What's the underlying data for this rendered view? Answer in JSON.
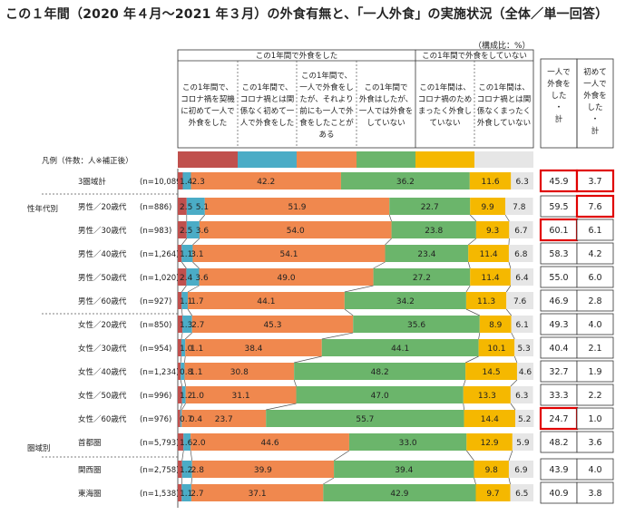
{
  "title": "この１年間（2020 年４月～2021 年３月）の外食有無と、「一人外食」の実施状況（全体／単一回答）",
  "unit_note": "（構成比：%）",
  "header": {
    "group_ate_out": "この1年間で外食をした",
    "group_not_ate_out": "この1年間で外食をしていない",
    "categories": [
      [
        "この1年間で、",
        "コロナ禍を契機",
        "に初めて一人で",
        "外食をした"
      ],
      [
        "この1年間で、",
        "コロナ禍とは関",
        "係なく初めて一",
        "人で外食をした"
      ],
      [
        "この1年間で、",
        "一人で外食をし",
        "たが、それより",
        "前にも一人で外",
        "食をしたことが",
        "ある"
      ],
      [
        "この1年間で",
        "外食はしたが、",
        "一人では外食を",
        "していない"
      ],
      [
        "この1年間は、",
        "コロナ禍のため",
        "まったく外食し",
        "ていない"
      ],
      [
        "この1年間は、",
        "コロナ禍とは関",
        "係なくまったく",
        "外食していない"
      ]
    ],
    "sum1": [
      "一人で",
      "外食を",
      "した",
      "・",
      "計"
    ],
    "sum2": [
      "初めて",
      "一人で",
      "外食を",
      "した",
      "・",
      "計"
    ]
  },
  "legend_label": "凡例（件数：人※補正後）",
  "colors": [
    "#c0504d",
    "#4bacc6",
    "#f0884e",
    "#6bb56b",
    "#f5b800",
    "#e6e6e6"
  ],
  "highlight_color": "#e00000",
  "group_labels": {
    "sex_age": "性年代別",
    "region": "圏域別"
  },
  "chart_data": {
    "type": "bar",
    "orientation": "horizontal-stacked-100",
    "xlim": [
      0,
      100
    ],
    "rows": [
      {
        "name": "3圏域計",
        "n": "(n=10,089)",
        "values": [
          1.4,
          2.3,
          42.2,
          36.2,
          11.6,
          6.3
        ],
        "sum1": "45.9",
        "sum2": "3.7",
        "box1": true,
        "box2": true
      },
      {
        "name": "男性／20歳代",
        "n": "(n=886)",
        "values": [
          2.5,
          5.1,
          51.9,
          22.7,
          9.9,
          7.8
        ],
        "sum1": "59.5",
        "sum2": "7.6",
        "box1": false,
        "box2": true
      },
      {
        "name": "男性／30歳代",
        "n": "(n=983)",
        "values": [
          2.5,
          3.6,
          54.0,
          23.8,
          9.3,
          6.7
        ],
        "sum1": "60.1",
        "sum2": "6.1",
        "box1": true,
        "box2": false
      },
      {
        "name": "男性／40歳代",
        "n": "(n=1,264)",
        "values": [
          1.1,
          3.1,
          54.1,
          23.4,
          11.4,
          6.8
        ],
        "sum1": "58.3",
        "sum2": "4.2",
        "box1": false,
        "box2": false
      },
      {
        "name": "男性／50歳代",
        "n": "(n=1,020)",
        "values": [
          2.4,
          3.6,
          49.0,
          27.2,
          11.4,
          6.4
        ],
        "sum1": "55.0",
        "sum2": "6.0",
        "box1": false,
        "box2": false
      },
      {
        "name": "男性／60歳代",
        "n": "(n=927)",
        "values": [
          1.1,
          1.7,
          44.1,
          34.2,
          11.3,
          7.6
        ],
        "sum1": "46.9",
        "sum2": "2.8",
        "box1": false,
        "box2": false
      },
      {
        "name": "女性／20歳代",
        "n": "(n=850)",
        "values": [
          1.3,
          2.7,
          45.3,
          35.6,
          8.9,
          6.1
        ],
        "sum1": "49.3",
        "sum2": "4.0",
        "box1": false,
        "box2": false
      },
      {
        "name": "女性／30歳代",
        "n": "(n=954)",
        "values": [
          1.0,
          1.1,
          38.4,
          44.1,
          10.1,
          5.3
        ],
        "sum1": "40.4",
        "sum2": "2.1",
        "box1": false,
        "box2": false
      },
      {
        "name": "女性／40歳代",
        "n": "(n=1,234)",
        "values": [
          0.8,
          1.1,
          30.8,
          48.2,
          14.5,
          4.6
        ],
        "sum1": "32.7",
        "sum2": "1.9",
        "box1": false,
        "box2": false
      },
      {
        "name": "女性／50歳代",
        "n": "(n=996)",
        "values": [
          1.2,
          1.0,
          31.1,
          47.0,
          13.3,
          6.3
        ],
        "sum1": "33.3",
        "sum2": "2.2",
        "box1": false,
        "box2": false
      },
      {
        "name": "女性／60歳代",
        "n": "(n=976)",
        "values": [
          0.7,
          0.4,
          23.7,
          55.7,
          14.4,
          5.2
        ],
        "sum1": "24.7",
        "sum2": "1.0",
        "box1": true,
        "box2": false
      },
      {
        "name": "首都圏",
        "n": "(n=5,793)",
        "values": [
          1.6,
          2.0,
          44.6,
          33.0,
          12.9,
          5.9
        ],
        "sum1": "48.2",
        "sum2": "3.6",
        "box1": false,
        "box2": false
      },
      {
        "name": "関西圏",
        "n": "(n=2,758)",
        "values": [
          1.2,
          2.8,
          39.9,
          39.4,
          9.8,
          6.9
        ],
        "sum1": "43.9",
        "sum2": "4.0",
        "box1": false,
        "box2": false
      },
      {
        "name": "東海圏",
        "n": "(n=1,538)",
        "values": [
          1.1,
          2.7,
          37.1,
          42.9,
          9.7,
          6.5
        ],
        "sum1": "40.9",
        "sum2": "3.8",
        "box1": false,
        "box2": false
      }
    ]
  }
}
